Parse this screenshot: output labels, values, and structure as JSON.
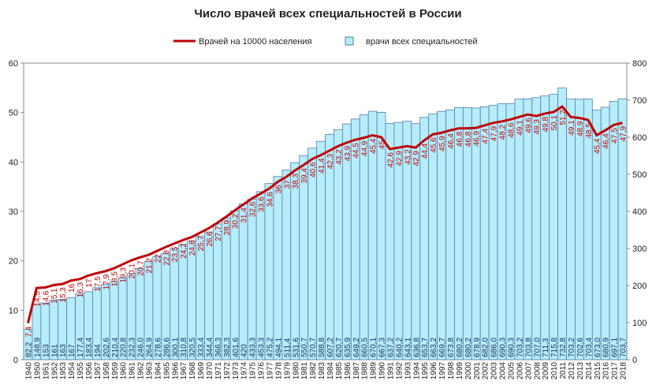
{
  "chart_data": {
    "type": "combo",
    "title": "Число врачей всех специальностей в России",
    "categories": [
      "1940",
      "1950",
      "1951",
      "1952",
      "1953",
      "1954",
      "1955",
      "1956",
      "1957",
      "1958",
      "1959",
      "1960",
      "1961",
      "1962",
      "1963",
      "1964",
      "1965",
      "1966",
      "1967",
      "1968",
      "1969",
      "1970",
      "1971",
      "1972",
      "1973",
      "1974",
      "1975",
      "1976",
      "1977",
      "1978",
      "1979",
      "1980",
      "1981",
      "1982",
      "1983",
      "1984",
      "1985",
      "1986",
      "1987",
      "1988",
      "1989",
      "1990",
      "1991",
      "1992",
      "1993",
      "1994",
      "1995",
      "1996",
      "1997",
      "1998",
      "1999",
      "2000",
      "2001",
      "2002",
      "2003",
      "2004",
      "2005",
      "2006",
      "2007",
      "2008",
      "2009",
      "2010",
      "2011",
      "2012",
      "2013",
      "2014",
      "2015",
      "2016",
      "2017",
      "2018"
    ],
    "series": [
      {
        "name": "врачи всех специальностей",
        "type": "bar",
        "axis": "y2",
        "color": "#b7ecfb",
        "stroke": "#4f7fa8",
        "values": [
          82.2,
          148.9,
          153,
          161,
          163,
          167,
          177.4,
          183.4,
          194,
          202.6,
          210.4,
          220.8,
          232.3,
          246,
          264.9,
          278.6,
          286.6,
          300.1,
          310.8,
          320.5,
          333.4,
          344.4,
          366.3,
          382.3,
          401.6,
          420,
          433.3,
          453.3,
          475.2,
          494.1,
          511.4,
          531.6,
          550.7,
          570.7,
          588.8,
          607.2,
          620.7,
          635.9,
          649.2,
          660.5,
          670.1,
          667.3,
          637.2,
          640.2,
          643.1,
          636.8,
          653.7,
          663.2,
          669.7,
          673.8,
          680.2,
          680.2,
          678.9,
          682,
          686,
          690.3,
          690.3,
          703.2,
          703.8,
          707,
          711.3,
          715.8,
          732.8,
          703.2,
          702.6,
          703.4,
          673,
          680.9,
          697.1,
          703.7
        ],
        "value_labels": [
          "82,2",
          "148,9",
          "153",
          "161",
          "163",
          "167",
          "177,4",
          "183,4",
          "194",
          "202,6",
          "210,4",
          "220,8",
          "232,3",
          "246,0",
          "264,9",
          "278,6",
          "286,6",
          "300,1",
          "310,8",
          "320,5",
          "333,4",
          "344,4",
          "366,3",
          "382,3",
          "401,6",
          "420",
          "433,3",
          "453,3",
          "475,2",
          "494,1",
          "511,4",
          "531,6",
          "550,7",
          "570,7",
          "588,8",
          "607,2",
          "620,7",
          "635,9",
          "649,2",
          "660,5",
          "670,1",
          "667,3",
          "637,2",
          "640,2",
          "643,1",
          "636,8",
          "653,7",
          "663,2",
          "669,7",
          "673,8",
          "680,2",
          "680,2",
          "678,9",
          "682,0",
          "686,0",
          "690,3",
          "690,3",
          "703,2",
          "703,8",
          "707,0",
          "711,3",
          "715,8",
          "732,8",
          "703,2",
          "702,6",
          "703,4",
          "673,0",
          "680,9",
          "697,1",
          "703,7"
        ]
      },
      {
        "name": "Врачей на 10000 населения",
        "type": "line",
        "color": "#c00000",
        "values": [
          7.4,
          14.5,
          14.6,
          15.1,
          15.3,
          16,
          16.3,
          17,
          17.5,
          17.9,
          18.5,
          19.3,
          20.1,
          20.7,
          21.2,
          22,
          22.8,
          23.5,
          24.2,
          24.8,
          25.7,
          26.6,
          27.7,
          28.9,
          30.2,
          31.4,
          32.6,
          33.6,
          34.6,
          36,
          37,
          38.3,
          39.4,
          40.6,
          41.4,
          42.3,
          43.2,
          43.9,
          44.5,
          44.9,
          45.4,
          45,
          42.6,
          42.9,
          43.2,
          42.9,
          44.4,
          45.6,
          45.9,
          46.4,
          46.8,
          46.8,
          46.9,
          47.4,
          47.9,
          48.2,
          48.6,
          49.1,
          49.6,
          49.3,
          49.8,
          50.1,
          51.2,
          49.1,
          48.9,
          48.5,
          45.4,
          46.4,
          47.5,
          47.9
        ],
        "value_labels": [
          "7,4",
          "14,5",
          "14,6",
          "15,1",
          "15,3",
          "16",
          "16,3",
          "17",
          "17,5",
          "17,9",
          "18,5",
          "19,3",
          "20,1",
          "20,7",
          "21,2",
          "22",
          "22,8",
          "23,5",
          "24,2",
          "24,8",
          "25,7",
          "26,6",
          "27,7",
          "28,9",
          "30,2",
          "31,4",
          "32,6",
          "33,6",
          "34,6",
          "36",
          "37",
          "38,3",
          "39,4",
          "40,6",
          "41,4",
          "42,3",
          "43,2",
          "43,9",
          "44,5",
          "44,9",
          "45,4",
          "45",
          "42,6",
          "42,9",
          "43,2",
          "42,9",
          "44,4",
          "45,6",
          "45,9",
          "46,4",
          "46,8",
          "46,8",
          "46,9",
          "47,4",
          "47,9",
          "48,2",
          "48,6",
          "49,1",
          "49,6",
          "49,3",
          "49,8",
          "50,1",
          "51,2",
          "49,1",
          "48,9",
          "48,5",
          "45,4",
          "46,4",
          "47,5",
          "47,9"
        ]
      }
    ],
    "ylim": [
      0,
      60
    ],
    "yticks": [
      0,
      10,
      20,
      30,
      40,
      50,
      60
    ],
    "y2lim": [
      0,
      800
    ],
    "y2ticks": [
      0,
      100,
      200,
      300,
      400,
      500,
      600,
      700,
      800
    ],
    "legend": "top"
  }
}
